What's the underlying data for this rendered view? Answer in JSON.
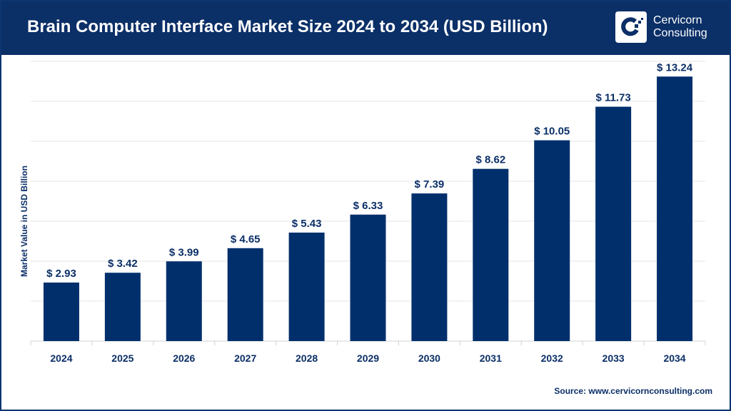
{
  "header": {
    "title": "Brain Computer Interface Market Size 2024 to 2034 (USD Billion)"
  },
  "logo": {
    "line1": "Cervicorn",
    "line2": "Consulting"
  },
  "source": "Source: www.cervicornconsulting.com",
  "colors": {
    "bar": "#002f6c",
    "header": "#0b2f67",
    "text": "#0b2f67"
  },
  "chart_data": {
    "type": "bar",
    "title": "Brain Computer Interface Market Size 2024 to 2034 (USD Billion)",
    "xlabel": "",
    "ylabel": "Market Value in USD Billion",
    "ylim": [
      0,
      14
    ],
    "grid": true,
    "categories": [
      "2024",
      "2025",
      "2026",
      "2027",
      "2028",
      "2029",
      "2030",
      "2031",
      "2032",
      "2033",
      "2034"
    ],
    "values": [
      2.93,
      3.42,
      3.99,
      4.65,
      5.43,
      6.33,
      7.39,
      8.62,
      10.05,
      11.73,
      13.24
    ],
    "labels": [
      "$ 2.93",
      "$ 3.42",
      "$ 3.99",
      "$ 4.65",
      "$ 5.43",
      "$ 6.33",
      "$ 7.39",
      "$ 8.62",
      "$ 10.05",
      "$ 11.73",
      "$ 13.24"
    ]
  }
}
